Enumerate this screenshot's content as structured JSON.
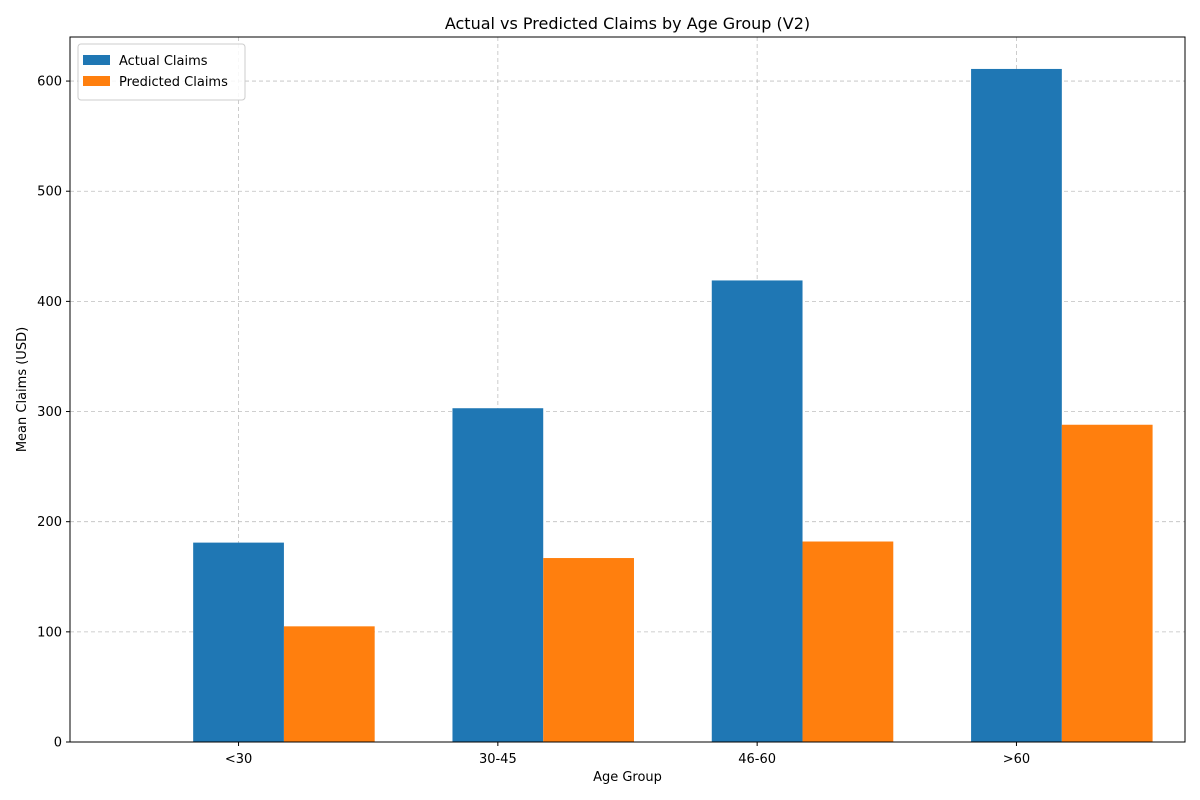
{
  "chart_data": {
    "type": "bar",
    "title": "Actual vs Predicted Claims by Age Group (V2)",
    "xlabel": "Age Group",
    "ylabel": "Mean Claims (USD)",
    "categories": [
      "<30",
      "30-45",
      "46-60",
      ">60"
    ],
    "series": [
      {
        "name": "Actual Claims",
        "color": "#1f77b4",
        "values": [
          181,
          303,
          419,
          611
        ]
      },
      {
        "name": "Predicted Claims",
        "color": "#ff7f0e",
        "values": [
          105,
          167,
          182,
          288
        ]
      }
    ],
    "ylim": [
      0,
      640
    ],
    "yticks": [
      0,
      100,
      200,
      300,
      400,
      500,
      600
    ],
    "grid": true,
    "legend_position": "top-left"
  }
}
